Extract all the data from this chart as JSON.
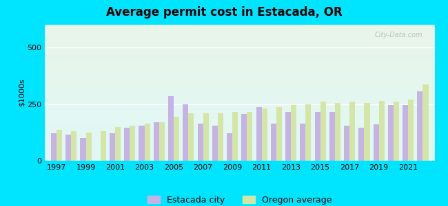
{
  "title": "Average permit cost in Estacada, OR",
  "ylabel": "$1000s",
  "ylim": [
    0,
    600
  ],
  "yticks": [
    0,
    250,
    500
  ],
  "background_outer": "#00e5ff",
  "background_inner_top": "#e8f5e9",
  "background_inner_bottom": "#e0f7fa",
  "bar_color_city": "#c5b3e6",
  "bar_color_oregon": "#d4e6a5",
  "legend_city": "Estacada city",
  "legend_oregon": "Oregon average",
  "years": [
    1997,
    1998,
    1999,
    2000,
    2001,
    2002,
    2003,
    2004,
    2005,
    2006,
    2007,
    2008,
    2009,
    2010,
    2011,
    2012,
    2013,
    2014,
    2015,
    2016,
    2017,
    2018,
    2019,
    2020,
    2021,
    2022
  ],
  "city_values": [
    120,
    115,
    100,
    null,
    120,
    145,
    155,
    170,
    285,
    250,
    165,
    155,
    120,
    205,
    235,
    165,
    215,
    165,
    215,
    215,
    155,
    145,
    160,
    245,
    245,
    305
  ],
  "oregon_values": [
    135,
    130,
    125,
    130,
    150,
    155,
    165,
    170,
    195,
    210,
    210,
    210,
    215,
    215,
    230,
    235,
    245,
    250,
    260,
    255,
    260,
    255,
    265,
    260,
    270,
    335
  ]
}
